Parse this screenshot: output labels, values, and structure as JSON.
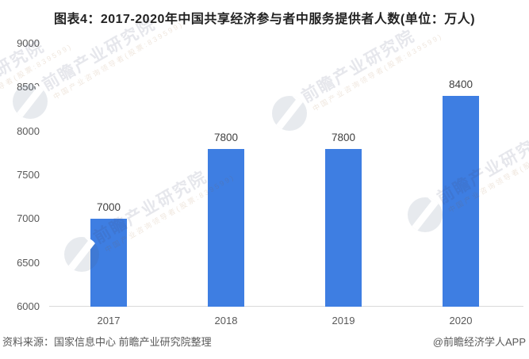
{
  "title": "图表4：2017-2020年中国共享经济参与者中服务提供者人数(单位：万人)",
  "chart_data": {
    "type": "bar",
    "title": "图表4：2017-2020年中国共享经济参与者中服务提供者人数(单位：万人)",
    "unit": "万人",
    "categories": [
      "2017",
      "2018",
      "2019",
      "2020"
    ],
    "values": [
      7000,
      7800,
      7800,
      8400
    ],
    "data_labels": [
      "7000",
      "7800",
      "7800",
      "8400"
    ],
    "xlabel": "",
    "ylabel": "",
    "ylim": [
      6000,
      9000
    ],
    "yticks": [
      6000,
      6500,
      7000,
      7500,
      8000,
      8500,
      9000
    ],
    "grid": false,
    "legend_position": "none",
    "bar_color": "#3E7EE2"
  },
  "footer": {
    "source": "资料来源：国家信息中心 前瞻产业研究院整理",
    "credit": "@前瞻经济学人APP"
  },
  "watermark": {
    "brand": "前瞻产业研究院",
    "tagline": "中国产业咨询领导者(股票:839599)"
  },
  "colors": {
    "bar": "#3E7EE2",
    "axis_line": "#d9d9d9",
    "axis_text": "#595959",
    "value_text": "#404040",
    "title_text": "#222222"
  }
}
